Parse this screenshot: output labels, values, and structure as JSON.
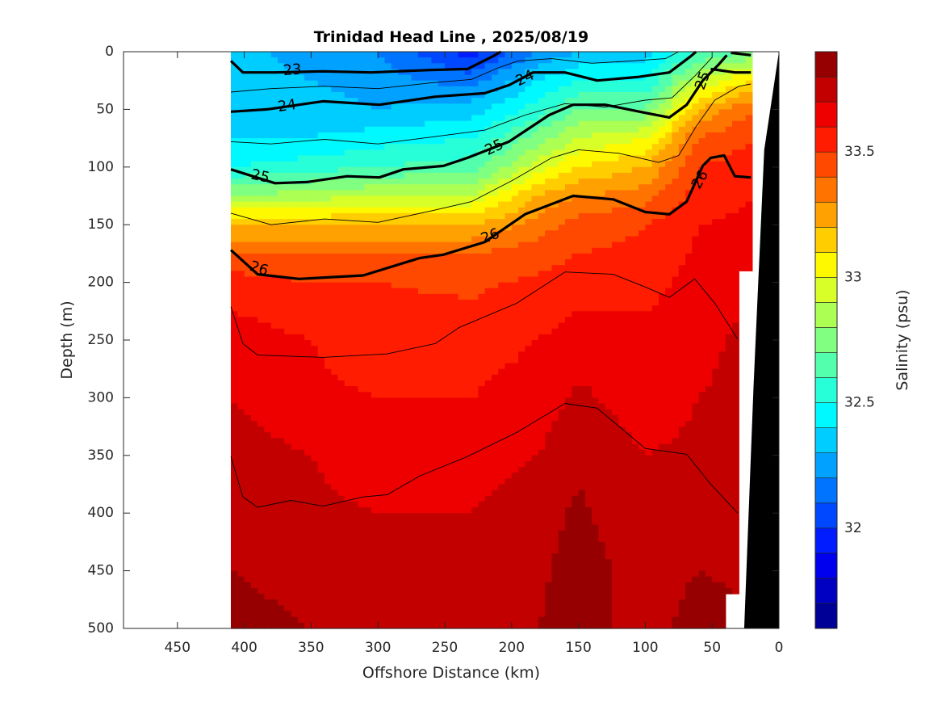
{
  "chart_data": {
    "type": "heatmap",
    "subtype": "filled-contour section",
    "title": "Trinidad Head Line , 2025/08/19",
    "xlabel": "Offshore Distance (km)",
    "ylabel": "Depth (m)",
    "colorbar_label": "Salinity (psu)",
    "xlim": [
      490,
      0
    ],
    "ylim": [
      500,
      0
    ],
    "xticks": [
      "450",
      "400",
      "350",
      "300",
      "250",
      "200",
      "150",
      "100",
      "50",
      "0"
    ],
    "xtick_values": [
      450,
      400,
      350,
      300,
      250,
      200,
      150,
      100,
      50,
      0
    ],
    "yticks": [
      "0",
      "50",
      "100",
      "150",
      "200",
      "250",
      "300",
      "350",
      "400",
      "450",
      "500"
    ],
    "ytick_values": [
      0,
      50,
      100,
      150,
      200,
      250,
      300,
      350,
      400,
      450,
      500
    ],
    "colorbar": {
      "min": 31.6,
      "max": 33.9,
      "step": 0.1,
      "colormap": "jet",
      "ticks": [
        "32",
        "32.5",
        "33",
        "33.5"
      ],
      "tick_values": [
        32,
        32.5,
        33,
        33.5
      ]
    },
    "depths_m": [
      0,
      25,
      50,
      75,
      100,
      125,
      150,
      175,
      200,
      250,
      300,
      350,
      400,
      450,
      500
    ],
    "profiles": [
      {
        "distance_km": 410,
        "salinity": [
          32.35,
          32.35,
          32.35,
          32.4,
          32.5,
          32.8,
          33.2,
          33.4,
          33.55,
          33.65,
          33.7,
          33.75,
          33.8,
          33.8,
          33.85
        ]
      },
      {
        "distance_km": 350,
        "salinity": [
          32.25,
          32.3,
          32.35,
          32.4,
          32.55,
          32.85,
          33.2,
          33.4,
          33.5,
          33.6,
          33.62,
          33.7,
          33.72,
          33.75,
          33.8
        ]
      },
      {
        "distance_km": 300,
        "salinity": [
          32.2,
          32.25,
          32.3,
          32.45,
          32.6,
          32.9,
          33.2,
          33.4,
          33.5,
          33.55,
          33.6,
          33.65,
          33.7,
          33.72,
          33.75
        ]
      },
      {
        "distance_km": 230,
        "salinity": [
          31.95,
          32.15,
          32.35,
          32.5,
          32.65,
          32.9,
          33.2,
          33.4,
          33.48,
          33.55,
          33.6,
          33.65,
          33.7,
          33.75,
          33.75
        ]
      },
      {
        "distance_km": 180,
        "salinity": [
          32.2,
          32.4,
          32.55,
          32.75,
          32.95,
          33.2,
          33.35,
          33.45,
          33.52,
          33.6,
          33.65,
          33.7,
          33.75,
          33.78,
          33.8
        ]
      },
      {
        "distance_km": 150,
        "salinity": [
          32.3,
          32.5,
          32.7,
          32.9,
          33.1,
          33.3,
          33.45,
          33.5,
          33.55,
          33.65,
          33.72,
          33.78,
          33.82,
          33.85,
          33.85
        ]
      },
      {
        "distance_km": 100,
        "salinity": [
          32.35,
          32.5,
          32.7,
          33.0,
          33.2,
          33.35,
          33.5,
          33.52,
          33.55,
          33.65,
          33.65,
          33.7,
          33.72,
          33.75,
          33.75
        ]
      },
      {
        "distance_km": 60,
        "salinity": [
          32.6,
          32.9,
          33.2,
          33.4,
          33.5,
          33.55,
          33.6,
          33.62,
          33.65,
          33.68,
          33.7,
          33.72,
          33.75,
          33.8,
          33.85
        ]
      },
      {
        "distance_km": 20,
        "salinity": [
          32.7,
          33.1,
          33.4,
          33.5,
          33.55,
          33.6,
          33.62,
          33.7,
          33.7,
          33.72,
          33.72,
          33.75,
          33.75,
          33.78,
          33.8
        ]
      }
    ],
    "bathymetry": [
      [
        0,
        0
      ],
      [
        11,
        85
      ],
      [
        19,
        290
      ],
      [
        26,
        500
      ],
      [
        0,
        500
      ]
    ],
    "density_contours": [
      {
        "level": "23",
        "major": true,
        "points": [
          [
            410,
            8
          ],
          [
            401,
            18
          ],
          [
            377,
            18
          ],
          [
            341,
            17
          ],
          [
            305,
            18
          ],
          [
            263,
            16
          ],
          [
            233,
            15
          ],
          [
            214,
            4
          ],
          [
            208,
            0
          ]
        ]
      },
      {
        "level": "23",
        "major": true,
        "points": [
          [
            36,
            1
          ],
          [
            21,
            3
          ]
        ]
      },
      {
        "level": "24",
        "major": true,
        "points": [
          [
            410,
            52
          ],
          [
            383,
            50
          ],
          [
            341,
            43
          ],
          [
            299,
            46
          ],
          [
            257,
            39
          ],
          [
            220,
            36
          ],
          [
            202,
            29
          ],
          [
            184,
            18
          ],
          [
            160,
            18
          ],
          [
            136,
            25
          ],
          [
            106,
            22
          ],
          [
            82,
            18
          ],
          [
            66,
            4
          ],
          [
            62,
            0
          ]
        ]
      },
      {
        "level": "24",
        "major": true,
        "points": [
          [
            51,
            15
          ],
          [
            33,
            18
          ],
          [
            21,
            18
          ]
        ]
      },
      {
        "level": "25",
        "major": true,
        "points": [
          [
            410,
            102
          ],
          [
            377,
            114
          ],
          [
            353,
            113
          ],
          [
            323,
            108
          ],
          [
            299,
            109
          ],
          [
            281,
            102
          ],
          [
            251,
            99
          ],
          [
            233,
            92
          ],
          [
            202,
            78
          ],
          [
            172,
            55
          ],
          [
            154,
            46
          ],
          [
            130,
            46
          ],
          [
            100,
            53
          ],
          [
            82,
            57
          ],
          [
            69,
            46
          ],
          [
            57,
            25
          ],
          [
            45,
            11
          ],
          [
            39,
            3
          ]
        ]
      },
      {
        "level": "26",
        "major": true,
        "points": [
          [
            410,
            172
          ],
          [
            390,
            193
          ],
          [
            359,
            197
          ],
          [
            311,
            194
          ],
          [
            269,
            179
          ],
          [
            251,
            176
          ],
          [
            220,
            165
          ],
          [
            190,
            141
          ],
          [
            154,
            125
          ],
          [
            124,
            128
          ],
          [
            100,
            139
          ],
          [
            82,
            141
          ],
          [
            69,
            130
          ],
          [
            57,
            99
          ],
          [
            51,
            92
          ],
          [
            41,
            90
          ],
          [
            33,
            108
          ],
          [
            21,
            109
          ]
        ]
      },
      {
        "level": "",
        "major": false,
        "points": [
          [
            410,
            221
          ],
          [
            401,
            253
          ],
          [
            390,
            263
          ],
          [
            341,
            265
          ],
          [
            293,
            262
          ],
          [
            257,
            253
          ],
          [
            239,
            239
          ],
          [
            196,
            218
          ],
          [
            160,
            191
          ],
          [
            124,
            193
          ],
          [
            100,
            204
          ],
          [
            82,
            213
          ],
          [
            63,
            197
          ],
          [
            48,
            218
          ],
          [
            31,
            249
          ]
        ]
      },
      {
        "level": "",
        "major": false,
        "points": [
          [
            410,
            351
          ],
          [
            401,
            386
          ],
          [
            390,
            395
          ],
          [
            365,
            389
          ],
          [
            341,
            394
          ],
          [
            311,
            386
          ],
          [
            293,
            384
          ],
          [
            269,
            368
          ],
          [
            233,
            351
          ],
          [
            196,
            330
          ],
          [
            160,
            305
          ],
          [
            136,
            309
          ],
          [
            100,
            344
          ],
          [
            69,
            349
          ],
          [
            51,
            375
          ],
          [
            31,
            400
          ]
        ]
      },
      {
        "level": "",
        "major": false,
        "points": [
          [
            410,
            78
          ],
          [
            380,
            80
          ],
          [
            340,
            76
          ],
          [
            300,
            80
          ],
          [
            260,
            74
          ],
          [
            220,
            68
          ],
          [
            190,
            55
          ],
          [
            160,
            45
          ],
          [
            130,
            48
          ],
          [
            100,
            42
          ],
          [
            80,
            40
          ],
          [
            62,
            20
          ],
          [
            50,
            5
          ]
        ]
      },
      {
        "level": "",
        "major": false,
        "points": [
          [
            410,
            140
          ],
          [
            380,
            150
          ],
          [
            340,
            145
          ],
          [
            300,
            148
          ],
          [
            260,
            138
          ],
          [
            230,
            130
          ],
          [
            200,
            112
          ],
          [
            170,
            92
          ],
          [
            150,
            85
          ],
          [
            120,
            88
          ],
          [
            90,
            96
          ],
          [
            75,
            90
          ],
          [
            62,
            65
          ],
          [
            48,
            42
          ],
          [
            30,
            30
          ],
          [
            21,
            28
          ]
        ]
      },
      {
        "level": "",
        "major": false,
        "points": [
          [
            410,
            35
          ],
          [
            380,
            32
          ],
          [
            340,
            30
          ],
          [
            300,
            32
          ],
          [
            260,
            27
          ],
          [
            230,
            24
          ],
          [
            210,
            14
          ],
          [
            195,
            8
          ],
          [
            170,
            6
          ],
          [
            140,
            10
          ],
          [
            110,
            8
          ],
          [
            85,
            6
          ],
          [
            75,
            0
          ]
        ]
      }
    ],
    "contour_labels": [
      {
        "text": "23",
        "x_km": 364,
        "depth_m": 16
      },
      {
        "text": "24",
        "x_km": 368,
        "depth_m": 47
      },
      {
        "text": "24",
        "x_km": 190,
        "depth_m": 23
      },
      {
        "text": "25",
        "x_km": 388,
        "depth_m": 108
      },
      {
        "text": "25",
        "x_km": 213,
        "depth_m": 83
      },
      {
        "text": "25",
        "x_km": 57,
        "depth_m": 25
      },
      {
        "text": "26",
        "x_km": 389,
        "depth_m": 188
      },
      {
        "text": "26",
        "x_km": 216,
        "depth_m": 160
      },
      {
        "text": "26",
        "x_km": 59,
        "depth_m": 111
      }
    ]
  }
}
